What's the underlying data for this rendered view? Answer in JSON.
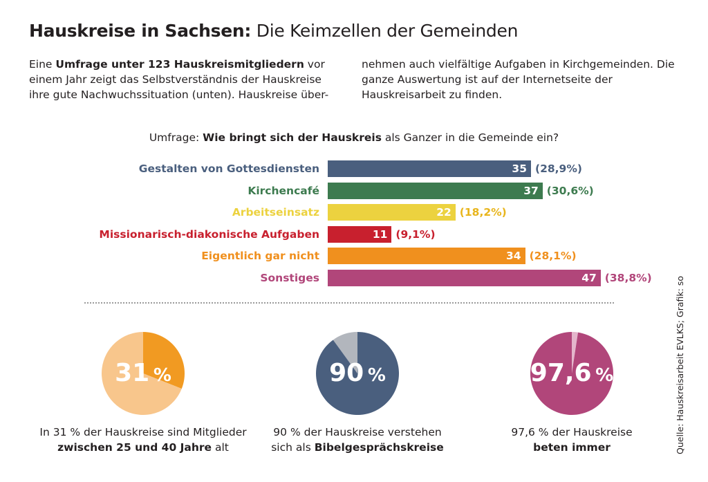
{
  "title": {
    "bold": "Hauskreise in Sachsen:",
    "light": "Die Keimzellen der Gemeinden"
  },
  "intro": {
    "left": {
      "pre": "Eine ",
      "bold": "Umfrage unter 123 Hauskreismitgliedern",
      "post": " vor einem Jahr zeigt das Selbstverständnis der Hauskreise ihre gute Nachwuchssituation (unten). Hauskreise über-"
    },
    "right": "nehmen auch vielfältige Aufgaben in Kirchgemeinden. Die ganze Auswertung ist auf der Internetseite der Hauskreisarbeit zu finden."
  },
  "question": {
    "pre": "Umfrage: ",
    "bold": "Wie bringt sich der Hauskreis",
    "post": " als Ganzer in die Gemeinde ein?"
  },
  "chart_data": [
    {
      "type": "bar",
      "orientation": "horizontal",
      "categories": [
        "Gestalten von Gottesdiensten",
        "Kirchencafé",
        "Arbeitseinsatz",
        "Missionarisch-diakonische Aufgaben",
        "Eigentlich gar nicht",
        "Sonstiges"
      ],
      "values": [
        35,
        37,
        22,
        11,
        34,
        47
      ],
      "value_labels": [
        "35",
        "37",
        "22",
        "11",
        "34",
        "47"
      ],
      "percent_labels": [
        "(28,9%)",
        "(30,6%)",
        "(18,2%)",
        "(9,1%)",
        "(28,1%)",
        "(38,8%)"
      ],
      "colors": [
        "#4a5f7e",
        "#3d7b4f",
        "#ecd23f",
        "#c8202e",
        "#f0901e",
        "#b1467a"
      ],
      "grid": false
    },
    {
      "type": "pie",
      "values": [
        31,
        69
      ],
      "colors": [
        "#f19a22",
        "#f8c68c"
      ],
      "label_num": "31",
      "label_unit": "%",
      "caption": {
        "pre": "In 31 % der Hauskreise sind Mitglieder",
        "bold": "zwischen 25 und 40 Jahre",
        "post": " alt"
      }
    },
    {
      "type": "pie",
      "values": [
        90,
        10
      ],
      "colors": [
        "#4a5f7e",
        "#b2b6bd"
      ],
      "label_num": "90",
      "label_unit": "%",
      "caption": {
        "pre": "90 % der Hauskreise verstehen",
        "pre2": "sich als ",
        "bold": "Bibelgesprächskreise"
      }
    },
    {
      "type": "pie",
      "values": [
        97.6,
        2.4
      ],
      "colors": [
        "#b1467a",
        "#e4b5cb"
      ],
      "label_num": "97,6",
      "label_unit": "%",
      "caption": {
        "pre": "97,6 % der Hauskreise",
        "bold": "beten immer"
      }
    }
  ],
  "source": "Quelle: Hauskreisarbeit EVLKS; Grafik: so"
}
